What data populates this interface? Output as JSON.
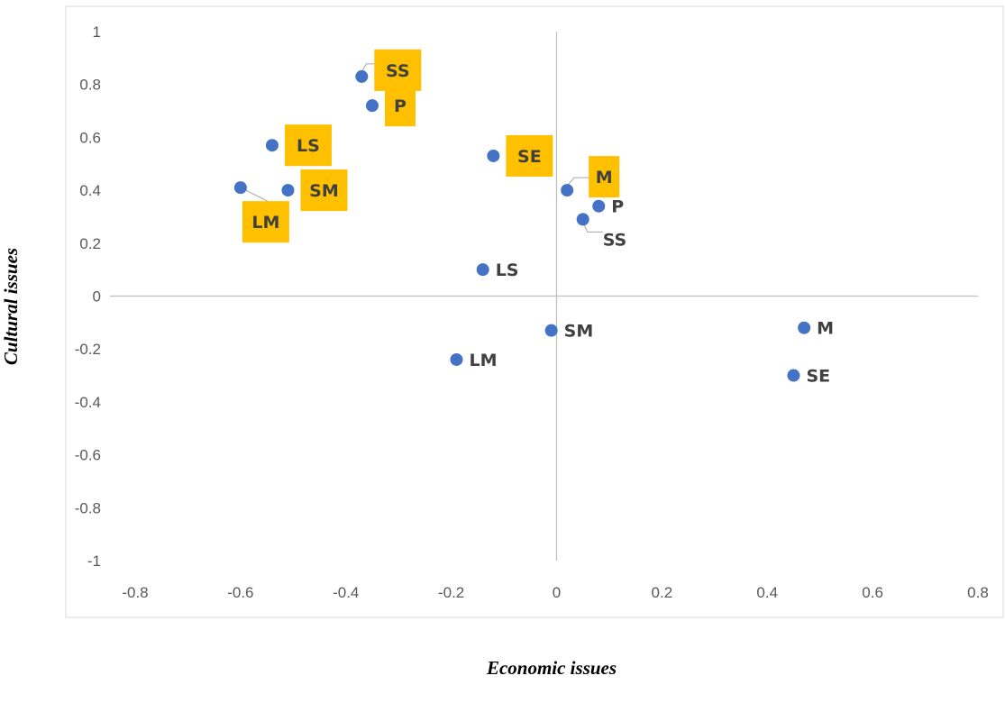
{
  "chart_data": {
    "type": "scatter",
    "title": "",
    "xlabel": "Economic issues",
    "ylabel": "Cultural issues",
    "xlim": [
      -0.8,
      0.8
    ],
    "ylim": [
      -1,
      1
    ],
    "xticks": [
      "-0.8",
      "-0.6",
      "-0.4",
      "-0.2",
      "0",
      "0.2",
      "0.4",
      "0.6",
      "0.8"
    ],
    "yticks": [
      "1",
      "0.8",
      "0.6",
      "0.4",
      "0.2",
      "0",
      "-0.2",
      "-0.4",
      "-0.6",
      "-0.8",
      "-1"
    ],
    "grid": false,
    "highlight_color": "#ffc000",
    "point_color": "#4472c4",
    "points": [
      {
        "label": "SS",
        "x": -0.37,
        "y": 0.83,
        "highlighted": true
      },
      {
        "label": "P",
        "x": -0.35,
        "y": 0.72,
        "highlighted": true
      },
      {
        "label": "LS",
        "x": -0.54,
        "y": 0.57,
        "highlighted": true
      },
      {
        "label": "LM",
        "x": -0.6,
        "y": 0.41,
        "highlighted": true
      },
      {
        "label": "SM",
        "x": -0.51,
        "y": 0.4,
        "highlighted": true
      },
      {
        "label": "SE",
        "x": -0.12,
        "y": 0.53,
        "highlighted": true
      },
      {
        "label": "M",
        "x": 0.02,
        "y": 0.4,
        "highlighted": true
      },
      {
        "label": "P",
        "x": 0.08,
        "y": 0.34,
        "highlighted": false
      },
      {
        "label": "SS",
        "x": 0.05,
        "y": 0.29,
        "highlighted": false
      },
      {
        "label": "LS",
        "x": -0.14,
        "y": 0.1,
        "highlighted": false
      },
      {
        "label": "SM",
        "x": -0.01,
        "y": -0.13,
        "highlighted": false
      },
      {
        "label": "LM",
        "x": -0.19,
        "y": -0.24,
        "highlighted": false
      },
      {
        "label": "M",
        "x": 0.47,
        "y": -0.12,
        "highlighted": false
      },
      {
        "label": "SE",
        "x": 0.45,
        "y": -0.3,
        "highlighted": false
      }
    ]
  }
}
